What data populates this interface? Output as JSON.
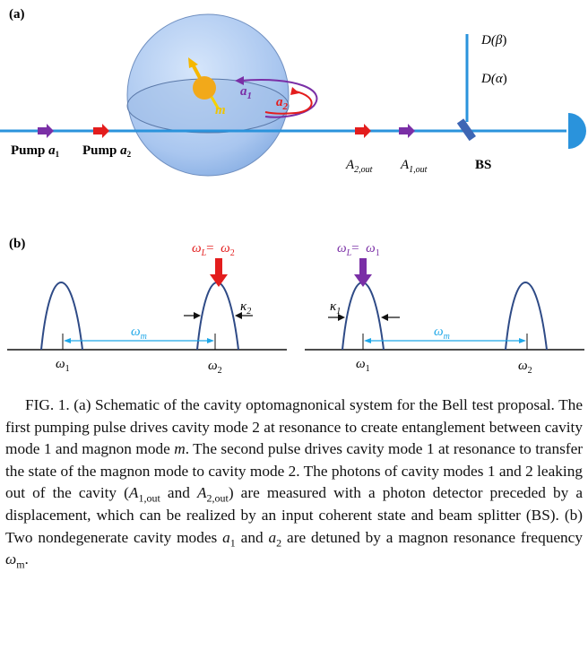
{
  "panel_a": {
    "label": "(a)",
    "d_beta": [
      "D(",
      "β",
      ")"
    ],
    "d_alpha": [
      "D(",
      "α",
      ")"
    ],
    "mode_a1": [
      "a",
      "1"
    ],
    "mode_a2": [
      "a",
      "2"
    ],
    "magnon": "m",
    "pump_a1": [
      "Pump ",
      "a",
      "1"
    ],
    "pump_a2": [
      "Pump ",
      "a",
      "2"
    ],
    "out_a2": [
      "A",
      "2,out"
    ],
    "out_a1": [
      "A",
      "1,out"
    ],
    "bs": "BS"
  },
  "panel_b": {
    "label": "(b)",
    "left": {
      "drive": [
        "ω",
        "L",
        "=  ",
        "ω",
        "2"
      ],
      "kappa": [
        "κ",
        "2"
      ],
      "detuning": [
        "ω",
        "m"
      ],
      "freq1": [
        "ω",
        "1"
      ],
      "freq2": [
        "ω",
        "2"
      ]
    },
    "right": {
      "drive": [
        "ω",
        "L",
        "=  ",
        "ω",
        "1"
      ],
      "kappa": [
        "κ",
        "1"
      ],
      "detuning": [
        "ω",
        "m"
      ],
      "freq1": [
        "ω",
        "1"
      ],
      "freq2": [
        "ω",
        "2"
      ]
    }
  },
  "caption": [
    "FIG. 1. (a) Schematic of the cavity optomagnonical system for the Bell test proposal. The first pumping pulse drives cavity mode 2 at resonance to create entanglement between cavity mode 1 and magnon mode ",
    "m",
    ". The second pulse drives cavity mode 1 at resonance to transfer the state of the magnon mode to cavity mode 2. The photons of cavity modes 1 and 2 leaking out of the cavity (",
    "A",
    "1,out",
    " and ",
    "A",
    "2,out",
    ") are measured with a photon detector preceded by a displacement, which can be realized by an input coherent state and beam splitter (BS). (b) Two nondegenerate cavity modes ",
    "a",
    "1",
    " and ",
    "a",
    "2",
    " are detuned by a magnon resonance frequency ",
    "ω",
    "m",
    "."
  ]
}
